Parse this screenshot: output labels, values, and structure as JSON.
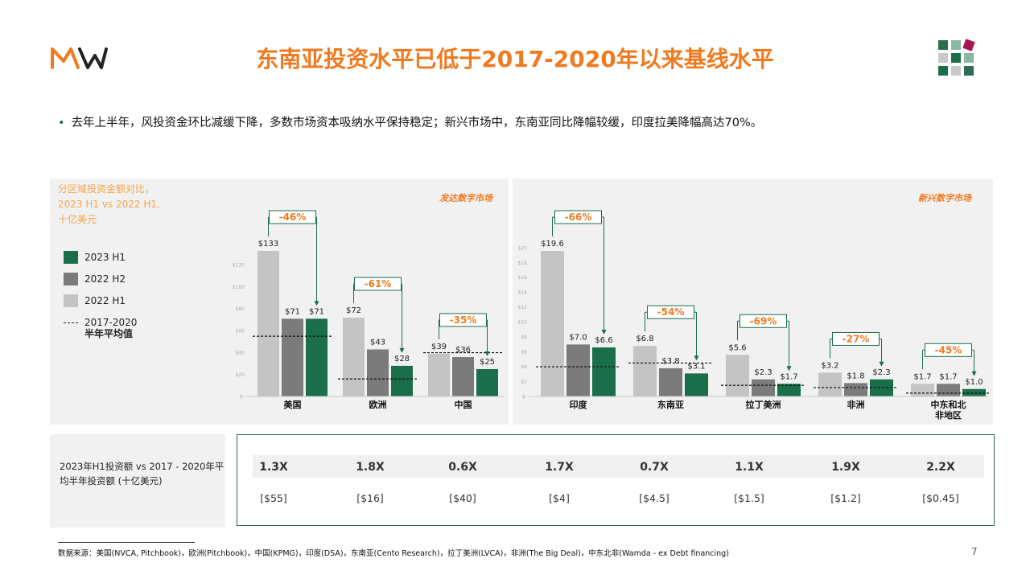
{
  "header": {
    "title": "东南亚投资水平已低于2017-2020年以来基线水平"
  },
  "bullet": "去年上半年，风投资金环比减缓下降，多数市场资本吸纳水平保持稳定；新兴市场中，东南亚同比降幅较缓，印度拉美降幅高达70%。",
  "panel_title": [
    "分区域投资金额对比，",
    "2023 H1 vs 2022 H1,",
    "十亿美元"
  ],
  "legend": [
    {
      "label": "2023 H1",
      "color": "#1a6e4a"
    },
    {
      "label": "2022 H2",
      "color": "#7b7b7b"
    },
    {
      "label": "2022 H1",
      "color": "#c4c4c4"
    },
    {
      "label": "2017-2020",
      "label2": "半年平均值"
    }
  ],
  "colors": {
    "accent": "#f07a1f",
    "h1_2023": "#1a6e4a",
    "h2_2022": "#7b7b7b",
    "h1_2022": "#c4c4c4",
    "border": "#2b6e51"
  },
  "chart_data": [
    {
      "type": "bar",
      "title": "发达数字市场",
      "categories": [
        "美国",
        "欧洲",
        "中国"
      ],
      "series": [
        {
          "name": "2022 H1",
          "values": [
            133,
            72,
            39
          ]
        },
        {
          "name": "2022 H2",
          "values": [
            71,
            43,
            36
          ]
        },
        {
          "name": "2023 H1",
          "values": [
            71,
            28,
            25
          ]
        }
      ],
      "value_labels": [
        [
          "$133",
          "$71",
          "$71"
        ],
        [
          "$72",
          "$43",
          "$28"
        ],
        [
          "$39",
          "$36",
          "$25"
        ]
      ],
      "changes": [
        "-46%",
        "-61%",
        "-35%"
      ],
      "baseline_2017_2020": [
        55,
        16,
        40
      ],
      "y_ticks": [
        "$-",
        "$20",
        "$40",
        "$60",
        "$80",
        "$100",
        "$120"
      ],
      "ylim": [
        0,
        133
      ]
    },
    {
      "type": "bar",
      "title": "新兴数字市场",
      "categories": [
        "印度",
        "东南亚",
        "拉丁美洲",
        "非洲",
        "中东和北非地区"
      ],
      "category_lines": [
        [
          "印度"
        ],
        [
          "东南亚"
        ],
        [
          "拉丁美洲"
        ],
        [
          "非洲"
        ],
        [
          "中东和北",
          "非地区"
        ]
      ],
      "series": [
        {
          "name": "2022 H1",
          "values": [
            19.6,
            6.8,
            5.6,
            3.2,
            1.7
          ]
        },
        {
          "name": "2022 H2",
          "values": [
            7.0,
            3.8,
            2.3,
            1.8,
            1.7
          ]
        },
        {
          "name": "2023 H1",
          "values": [
            6.6,
            3.1,
            1.7,
            2.3,
            1.0
          ]
        }
      ],
      "value_labels": [
        [
          "$19.6",
          "$7.0",
          "$6.6"
        ],
        [
          "$6.8",
          "$3.8",
          "$3.1"
        ],
        [
          "$5.6",
          "$2.3",
          "$1.7"
        ],
        [
          "$3.2",
          "$1.8",
          "$2.3"
        ],
        [
          "$1.7",
          "$1.7",
          "$1.0"
        ]
      ],
      "changes": [
        "-66%",
        "-54%",
        "-69%",
        "-27%",
        "-45%"
      ],
      "baseline_2017_2020": [
        4,
        4.5,
        1.5,
        1.2,
        0.45
      ],
      "y_ticks": [
        "$-",
        "$2",
        "$4",
        "$6",
        "$8",
        "$10",
        "$12",
        "$14",
        "$16",
        "$18",
        "$20"
      ],
      "ylim": [
        0,
        19.6
      ]
    }
  ],
  "comparison": {
    "label": "2023年H1投资额 vs 2017 - 2020年平均半年投资额 (十亿美元)",
    "multiples": [
      "1.3X",
      "1.8X",
      "0.6X",
      "1.7X",
      "0.7X",
      "1.1X",
      "1.9X",
      "2.2X"
    ],
    "averages": [
      "[$55]",
      "[$16]",
      "[$40]",
      "[$4]",
      "[$4.5]",
      "[$1.5]",
      "[$1.2]",
      "[$0.45]"
    ]
  },
  "footer": {
    "source": "数据来源：美国(NVCA, Pitchbook)，欧洲(Pitchbook)，中国(KPMG)，印度(DSA)，东南亚(Cento Research)，拉丁美洲(LVCA)，非洲(The Big Deal)，中东北非(Wamda - ex Debt financing)",
    "page": "7"
  }
}
